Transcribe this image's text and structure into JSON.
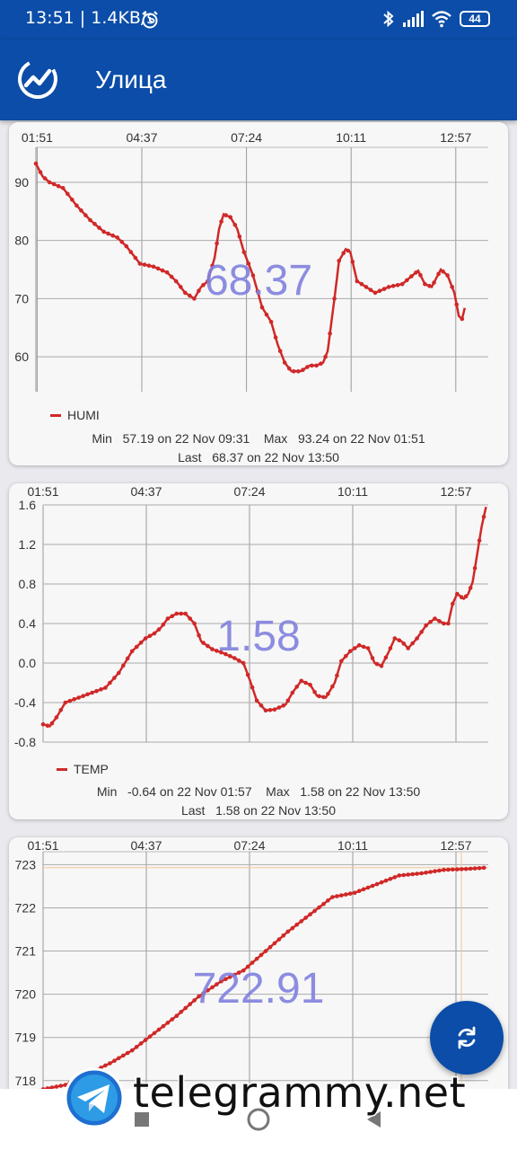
{
  "status_bar": {
    "time": "13:51 | 1.4KB/s",
    "battery": "44"
  },
  "app_bar": {
    "title": "Улица"
  },
  "x_ticks": [
    "01:51",
    "04:37",
    "07:24",
    "10:11",
    "12:57"
  ],
  "line_color": "#d02828",
  "humi": {
    "overlay_value": "68.37",
    "legend": "HUMI",
    "stats_line1": "Min   57.19 on 22 Nov 09:31    Max   93.24 on 22 Nov 01:51",
    "stats_line2": "Last   68.37 on 22 Nov 13:50"
  },
  "temp": {
    "overlay_value": "1.58",
    "legend": "TEMP",
    "stats_line1": "Min   -0.64 on 22 Nov 01:57    Max   1.58 on 22 Nov 13:50",
    "stats_line2": "Last   1.58 on 22 Nov 13:50"
  },
  "press": {
    "overlay_value": "722.91"
  },
  "watermark": {
    "text": "telegrammy.net"
  },
  "chart_data": [
    {
      "type": "line",
      "x_ticks": [
        "01:51",
        "04:37",
        "07:24",
        "10:11",
        "12:57"
      ],
      "ylim": [
        54,
        96
      ],
      "y_ticks": [
        60,
        70,
        80,
        90
      ],
      "grid": true,
      "legend": "bottom-left",
      "series": [
        {
          "name": "HUMI",
          "color": "#d02828",
          "points": [
            [
              0,
              93.2
            ],
            [
              0.15,
              91
            ],
            [
              0.3,
              90
            ],
            [
              0.6,
              89
            ],
            [
              0.9,
              86
            ],
            [
              1.2,
              83.5
            ],
            [
              1.5,
              81.5
            ],
            [
              1.8,
              80.5
            ],
            [
              2.0,
              79
            ],
            [
              2.3,
              76
            ],
            [
              2.6,
              75.5
            ],
            [
              2.9,
              74.5
            ],
            [
              3.1,
              73
            ],
            [
              3.3,
              71
            ],
            [
              3.5,
              70
            ],
            [
              3.65,
              72
            ],
            [
              3.8,
              73
            ],
            [
              3.95,
              77
            ],
            [
              4.05,
              82
            ],
            [
              4.15,
              84.5
            ],
            [
              4.3,
              84
            ],
            [
              4.45,
              82
            ],
            [
              4.6,
              78
            ],
            [
              4.8,
              74
            ],
            [
              5.0,
              68.5
            ],
            [
              5.2,
              66
            ],
            [
              5.35,
              62
            ],
            [
              5.5,
              59
            ],
            [
              5.65,
              57.5
            ],
            [
              5.85,
              57.5
            ],
            [
              6.05,
              58.5
            ],
            [
              6.2,
              58.5
            ],
            [
              6.35,
              59
            ],
            [
              6.45,
              61
            ],
            [
              6.5,
              64
            ],
            [
              6.6,
              70
            ],
            [
              6.7,
              76.5
            ],
            [
              6.85,
              78.5
            ],
            [
              6.95,
              78
            ],
            [
              7.1,
              73
            ],
            [
              7.3,
              72
            ],
            [
              7.5,
              71
            ],
            [
              7.8,
              72
            ],
            [
              8.1,
              72.5
            ],
            [
              8.25,
              73.5
            ],
            [
              8.45,
              74.8
            ],
            [
              8.6,
              72.5
            ],
            [
              8.75,
              72
            ],
            [
              8.95,
              75
            ],
            [
              9.1,
              74
            ],
            [
              9.25,
              71
            ],
            [
              9.35,
              67
            ],
            [
              9.42,
              66.5
            ],
            [
              9.48,
              68.4
            ]
          ]
        }
      ]
    },
    {
      "type": "line",
      "legend_name": "TEMP",
      "x_ticks": [
        "01:51",
        "04:37",
        "07:24",
        "10:11",
        "12:57"
      ],
      "ylim": [
        -0.8,
        1.6
      ],
      "y_ticks": [
        -0.8,
        -0.4,
        0.0,
        0.4,
        0.8,
        1.2,
        1.6
      ],
      "grid": true,
      "legend": "bottom-left",
      "series": [
        {
          "name": "TEMP",
          "color": "#d02828",
          "points": [
            [
              0,
              -0.62
            ],
            [
              0.15,
              -0.64
            ],
            [
              0.3,
              -0.55
            ],
            [
              0.5,
              -0.4
            ],
            [
              0.8,
              -0.35
            ],
            [
              1.1,
              -0.3
            ],
            [
              1.4,
              -0.25
            ],
            [
              1.7,
              -0.1
            ],
            [
              2.0,
              0.12
            ],
            [
              2.3,
              0.25
            ],
            [
              2.5,
              0.3
            ],
            [
              2.65,
              0.36
            ],
            [
              2.8,
              0.45
            ],
            [
              3.0,
              0.5
            ],
            [
              3.2,
              0.5
            ],
            [
              3.4,
              0.4
            ],
            [
              3.55,
              0.22
            ],
            [
              3.8,
              0.14
            ],
            [
              4.05,
              0.1
            ],
            [
              4.3,
              0.05
            ],
            [
              4.5,
              0.0
            ],
            [
              4.65,
              -0.18
            ],
            [
              4.8,
              -0.38
            ],
            [
              5.0,
              -0.48
            ],
            [
              5.2,
              -0.47
            ],
            [
              5.45,
              -0.42
            ],
            [
              5.6,
              -0.3
            ],
            [
              5.8,
              -0.18
            ],
            [
              6.0,
              -0.22
            ],
            [
              6.15,
              -0.33
            ],
            [
              6.35,
              -0.35
            ],
            [
              6.55,
              -0.2
            ],
            [
              6.7,
              0.02
            ],
            [
              6.9,
              0.12
            ],
            [
              7.1,
              0.18
            ],
            [
              7.3,
              0.15
            ],
            [
              7.45,
              0.0
            ],
            [
              7.6,
              -0.03
            ],
            [
              7.75,
              0.1
            ],
            [
              7.9,
              0.25
            ],
            [
              8.05,
              0.22
            ],
            [
              8.2,
              0.15
            ],
            [
              8.4,
              0.25
            ],
            [
              8.6,
              0.38
            ],
            [
              8.8,
              0.45
            ],
            [
              9.0,
              0.4
            ],
            [
              9.1,
              0.4
            ],
            [
              9.2,
              0.6
            ],
            [
              9.3,
              0.7
            ],
            [
              9.45,
              0.65
            ],
            [
              9.55,
              0.7
            ],
            [
              9.65,
              0.82
            ],
            [
              9.75,
              1.1
            ],
            [
              9.85,
              1.38
            ],
            [
              9.95,
              1.58
            ]
          ]
        }
      ]
    },
    {
      "type": "line",
      "x_ticks": [
        "01:51",
        "04:37",
        "07:24",
        "10:11",
        "12:57"
      ],
      "ylim": [
        717.6,
        723.3
      ],
      "y_ticks": [
        718,
        719,
        720,
        721,
        722,
        723
      ],
      "grid": true,
      "series": [
        {
          "color": "#d02828",
          "points": [
            [
              0,
              717.8
            ],
            [
              0.5,
              717.9
            ],
            [
              1.0,
              718.15
            ],
            [
              1.5,
              718.4
            ],
            [
              2.0,
              718.7
            ],
            [
              2.5,
              719.1
            ],
            [
              3.0,
              719.5
            ],
            [
              3.5,
              719.95
            ],
            [
              4.0,
              720.3
            ],
            [
              4.5,
              720.55
            ],
            [
              5.0,
              721.0
            ],
            [
              5.5,
              721.45
            ],
            [
              6.0,
              721.85
            ],
            [
              6.5,
              722.25
            ],
            [
              7.0,
              722.35
            ],
            [
              7.5,
              722.55
            ],
            [
              8.0,
              722.75
            ],
            [
              8.5,
              722.8
            ],
            [
              9.0,
              722.88
            ],
            [
              9.5,
              722.9
            ],
            [
              9.95,
              722.93
            ]
          ]
        }
      ]
    }
  ]
}
